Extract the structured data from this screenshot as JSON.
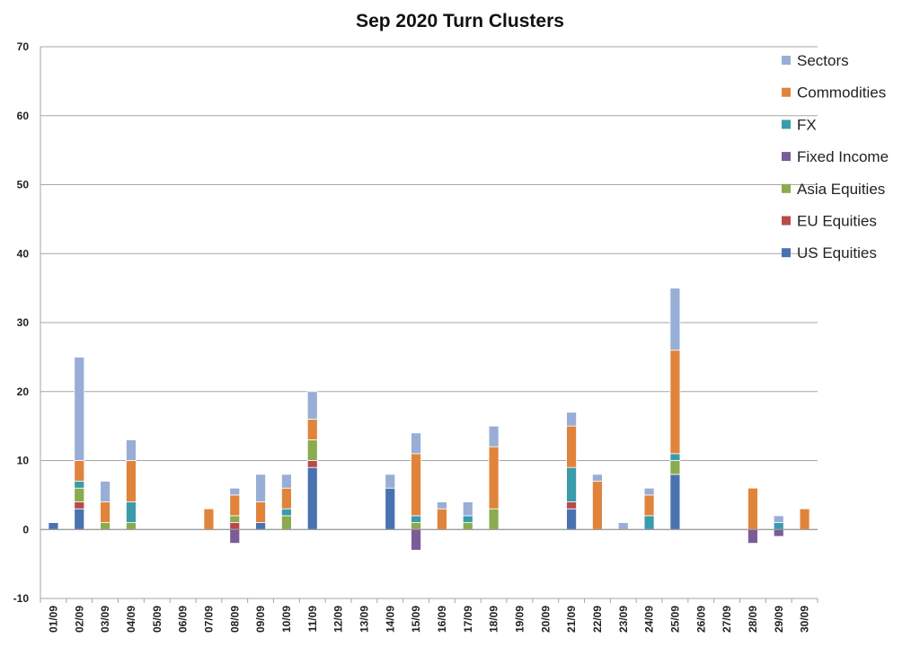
{
  "chart_data": {
    "type": "bar",
    "stacked": true,
    "title": "Sep 2020 Turn Clusters",
    "xlabel": "",
    "ylabel": "",
    "ylim": [
      -10,
      70
    ],
    "yticks": [
      -10,
      0,
      10,
      20,
      30,
      40,
      50,
      60,
      70
    ],
    "grid": true,
    "legend_position": "right",
    "categories": [
      "01/09",
      "02/09",
      "03/09",
      "04/09",
      "05/09",
      "06/09",
      "07/09",
      "08/09",
      "09/09",
      "10/09",
      "11/09",
      "12/09",
      "13/09",
      "14/09",
      "15/09",
      "16/09",
      "17/09",
      "18/09",
      "19/09",
      "20/09",
      "21/09",
      "22/09",
      "23/09",
      "24/09",
      "25/09",
      "26/09",
      "27/09",
      "28/09",
      "29/09",
      "30/09"
    ],
    "series": [
      {
        "name": "US Equities",
        "color": "#4a72b0",
        "values": [
          1,
          3,
          0,
          0,
          0,
          0,
          0,
          0,
          1,
          0,
          9,
          0,
          0,
          6,
          0,
          0,
          0,
          0,
          0,
          0,
          3,
          0,
          0,
          0,
          8,
          0,
          0,
          0,
          0,
          0
        ]
      },
      {
        "name": "EU Equities",
        "color": "#b94a48",
        "values": [
          0,
          1,
          0,
          0,
          0,
          0,
          0,
          1,
          0,
          0,
          1,
          0,
          0,
          0,
          0,
          0,
          0,
          0,
          0,
          0,
          1,
          0,
          0,
          0,
          0,
          0,
          0,
          0,
          0,
          0
        ]
      },
      {
        "name": "Asia Equities",
        "color": "#8aab4f",
        "values": [
          0,
          2,
          1,
          1,
          0,
          0,
          0,
          1,
          0,
          2,
          3,
          0,
          0,
          0,
          1,
          0,
          1,
          3,
          0,
          0,
          0,
          0,
          0,
          0,
          2,
          0,
          0,
          0,
          0,
          0
        ]
      },
      {
        "name": "Fixed Income",
        "color": "#7a5c99",
        "values": [
          0,
          0,
          0,
          0,
          0,
          0,
          0,
          -2,
          0,
          0,
          0,
          0,
          0,
          0,
          -3,
          0,
          0,
          0,
          0,
          0,
          0,
          0,
          0,
          0,
          0,
          0,
          0,
          -2,
          -1,
          0
        ]
      },
      {
        "name": "FX",
        "color": "#3a9bab",
        "values": [
          0,
          1,
          0,
          3,
          0,
          0,
          0,
          0,
          0,
          1,
          0,
          0,
          0,
          0,
          1,
          0,
          1,
          0,
          0,
          0,
          5,
          0,
          0,
          2,
          1,
          0,
          0,
          0,
          1,
          0
        ]
      },
      {
        "name": "Commodities",
        "color": "#e0843c",
        "values": [
          0,
          3,
          3,
          6,
          0,
          0,
          3,
          3,
          3,
          3,
          3,
          0,
          0,
          0,
          9,
          3,
          0,
          9,
          0,
          0,
          6,
          7,
          0,
          3,
          15,
          0,
          0,
          6,
          0,
          3
        ]
      },
      {
        "name": "Sectors",
        "color": "#98aed6",
        "values": [
          0,
          15,
          3,
          3,
          0,
          0,
          0,
          1,
          4,
          2,
          4,
          0,
          0,
          2,
          3,
          1,
          2,
          3,
          0,
          0,
          2,
          1,
          1,
          1,
          9,
          0,
          0,
          0,
          1,
          0
        ]
      }
    ]
  }
}
